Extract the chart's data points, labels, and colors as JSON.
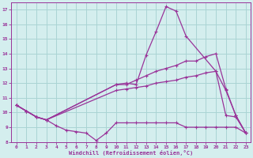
{
  "xlabel": "Windchill (Refroidissement éolien,°C)",
  "bg_color": "#d4eeee",
  "grid_color": "#aad4d4",
  "line_color": "#993399",
  "xlim": [
    -0.5,
    23.5
  ],
  "ylim": [
    8,
    17.5
  ],
  "xticks": [
    0,
    1,
    2,
    3,
    4,
    5,
    6,
    7,
    8,
    9,
    10,
    11,
    12,
    13,
    14,
    15,
    16,
    17,
    18,
    19,
    20,
    21,
    22,
    23
  ],
  "yticks": [
    8,
    9,
    10,
    11,
    12,
    13,
    14,
    15,
    16,
    17
  ],
  "series": [
    {
      "x": [
        0,
        1,
        2,
        3,
        4,
        5,
        6,
        7,
        8,
        9,
        10,
        11,
        12,
        13,
        14,
        15,
        16,
        17,
        18,
        19,
        20,
        21,
        22,
        23
      ],
      "y": [
        10.5,
        10.1,
        9.7,
        9.5,
        9.1,
        8.8,
        8.7,
        8.6,
        8.1,
        8.6,
        9.3,
        9.3,
        9.3,
        9.3,
        9.3,
        9.3,
        9.3,
        9.0,
        9.0,
        9.0,
        9.0,
        9.0,
        9.0,
        8.6
      ]
    },
    {
      "x": [
        0,
        1,
        2,
        3,
        10,
        11,
        12,
        13,
        14,
        15,
        16,
        17,
        20,
        21,
        22,
        23
      ],
      "y": [
        10.5,
        10.1,
        9.7,
        9.5,
        11.9,
        12.0,
        11.9,
        13.9,
        15.5,
        17.2,
        16.9,
        15.2,
        12.8,
        9.8,
        9.7,
        8.6
      ]
    },
    {
      "x": [
        0,
        1,
        2,
        3,
        10,
        11,
        12,
        13,
        14,
        15,
        16,
        17,
        18,
        19,
        20,
        21,
        22,
        23
      ],
      "y": [
        10.5,
        10.1,
        9.7,
        9.5,
        11.9,
        11.9,
        12.2,
        12.5,
        12.8,
        13.0,
        13.2,
        13.5,
        13.5,
        13.8,
        14.0,
        11.6,
        9.8,
        8.6
      ]
    },
    {
      "x": [
        0,
        1,
        2,
        3,
        10,
        11,
        12,
        13,
        14,
        15,
        16,
        17,
        18,
        19,
        20,
        21,
        22,
        23
      ],
      "y": [
        10.5,
        10.1,
        9.7,
        9.5,
        11.5,
        11.6,
        11.7,
        11.8,
        12.0,
        12.1,
        12.2,
        12.4,
        12.5,
        12.7,
        12.8,
        11.5,
        9.8,
        8.6
      ]
    }
  ]
}
